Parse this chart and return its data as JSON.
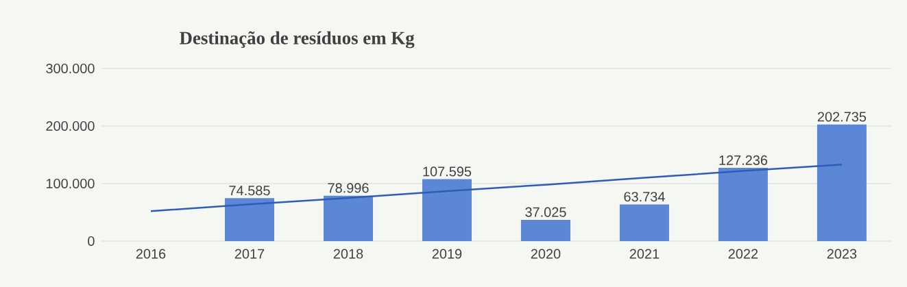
{
  "chart_data": {
    "type": "bar",
    "title": "Destinação de resíduos em Kg",
    "categories": [
      "2016",
      "2017",
      "2018",
      "2019",
      "2020",
      "2021",
      "2022",
      "2023"
    ],
    "series": [
      {
        "color": "#5b87d6",
        "values": [
          null,
          74585,
          78996,
          107595,
          37025,
          63734,
          127236,
          202735
        ],
        "value_labels": [
          null,
          "74.585",
          "78.996",
          "107.595",
          "37.025",
          "63.734",
          "127.236",
          "202.735"
        ]
      },
      {
        "type": "line",
        "color": "#2f5cb8",
        "values": [
          52000,
          64000,
          75000,
          87000,
          98000,
          110000,
          122000,
          133000
        ],
        "marker": "none"
      }
    ],
    "ylim": [
      0,
      300000
    ],
    "yticks": [
      {
        "value": 0,
        "label": "0"
      },
      {
        "value": 100000,
        "label": "100.000"
      },
      {
        "value": 200000,
        "label": "200.000"
      },
      {
        "value": 300000,
        "label": "300.000"
      }
    ],
    "grid": "y"
  }
}
